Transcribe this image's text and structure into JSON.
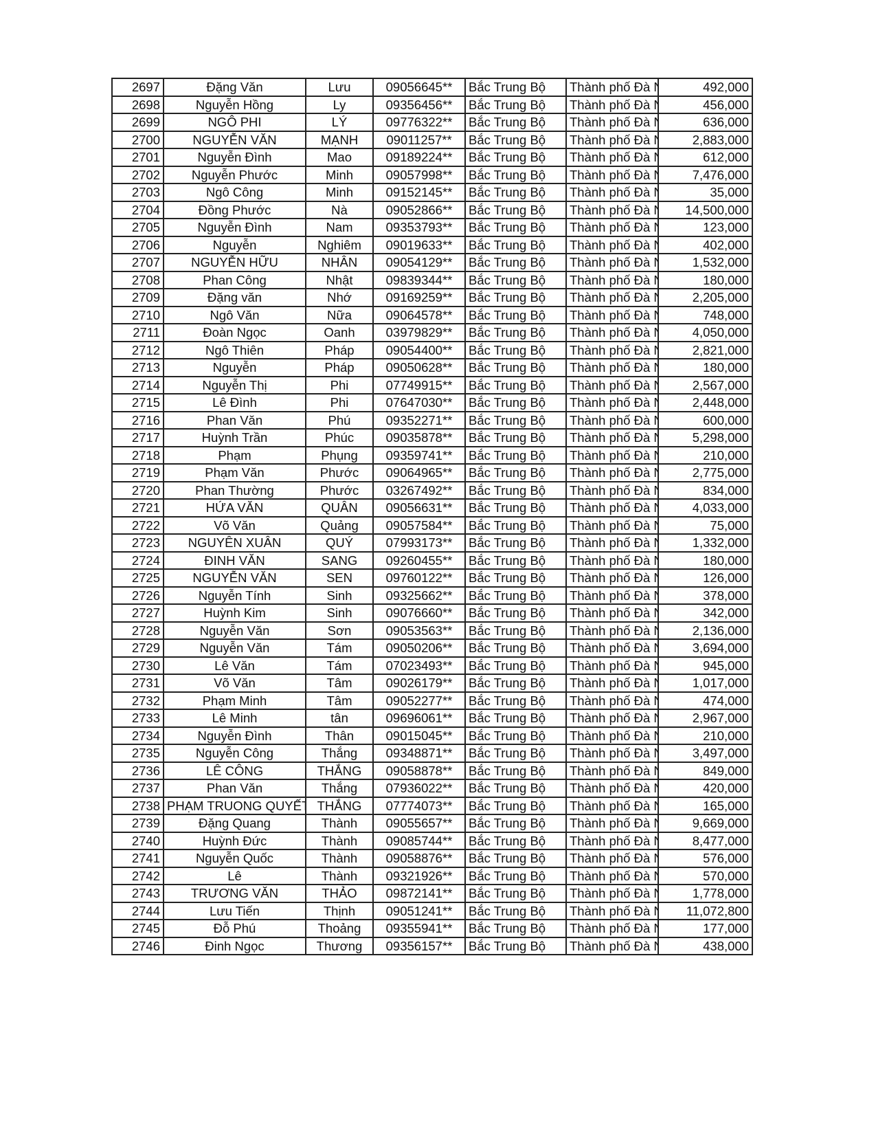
{
  "table": {
    "rows": [
      [
        "2697",
        "Đặng Văn",
        "Lưu",
        "09056645**",
        "Bắc Trung Bộ",
        "Thành phố Đà N",
        "492,000"
      ],
      [
        "2698",
        "Nguyễn Hồng",
        "Ly",
        "09356456**",
        "Bắc Trung Bộ",
        "Thành phố Đà N",
        "456,000"
      ],
      [
        "2699",
        "NGÔ PHI",
        "LÝ",
        "09776322**",
        "Bắc Trung Bộ",
        "Thành phố Đà N",
        "636,000"
      ],
      [
        "2700",
        "NGUYỄN VĂN",
        "MẠNH",
        "09011257**",
        "Bắc Trung Bộ",
        "Thành phố Đà N",
        "2,883,000"
      ],
      [
        "2701",
        "Nguyễn Đình",
        "Mao",
        "09189224**",
        "Bắc Trung Bộ",
        "Thành phố Đà N",
        "612,000"
      ],
      [
        "2702",
        "Nguyễn Phước",
        "Minh",
        "09057998**",
        "Bắc Trung Bộ",
        "Thành phố Đà N",
        "7,476,000"
      ],
      [
        "2703",
        "Ngô Công",
        "Minh",
        "09152145**",
        "Bắc Trung Bộ",
        "Thành phố Đà N",
        "35,000"
      ],
      [
        "2704",
        "Đồng Phước",
        "Nà",
        "09052866**",
        "Bắc Trung Bộ",
        "Thành phố Đà N",
        "14,500,000"
      ],
      [
        "2705",
        "Nguyễn Đình",
        "Nam",
        "09353793**",
        "Bắc Trung Bộ",
        "Thành phố Đà N",
        "123,000"
      ],
      [
        "2706",
        "Nguyễn",
        "Nghiêm",
        "09019633**",
        "Bắc Trung Bộ",
        "Thành phố Đà N",
        "402,000"
      ],
      [
        "2707",
        "NGUYỄN HỮU",
        "NHÂN",
        "09054129**",
        "Bắc Trung Bộ",
        "Thành phố Đà N",
        "1,532,000"
      ],
      [
        "2708",
        "Phan Công",
        "Nhật",
        "09839344**",
        "Bắc Trung Bộ",
        "Thành phố Đà N",
        "180,000"
      ],
      [
        "2709",
        "Đặng văn",
        "Nhớ",
        "09169259**",
        "Bắc Trung Bộ",
        "Thành phố Đà N",
        "2,205,000"
      ],
      [
        "2710",
        "Ngô Văn",
        "Nữa",
        "09064578**",
        "Bắc Trung Bộ",
        "Thành phố Đà N",
        "748,000"
      ],
      [
        "2711",
        "Đoàn Ngọc",
        "Oanh",
        "03979829**",
        "Bắc Trung Bộ",
        "Thành phố Đà N",
        "4,050,000"
      ],
      [
        "2712",
        "Ngô Thiên",
        "Pháp",
        "09054400**",
        "Bắc Trung Bộ",
        "Thành phố Đà N",
        "2,821,000"
      ],
      [
        "2713",
        "Nguyễn",
        "Pháp",
        "09050628**",
        "Bắc Trung Bộ",
        "Thành phố Đà N",
        "180,000"
      ],
      [
        "2714",
        "Nguyễn Thị",
        "Phi",
        "07749915**",
        "Bắc Trung Bộ",
        "Thành phố Đà N",
        "2,567,000"
      ],
      [
        "2715",
        "Lê Đình",
        "Phi",
        "07647030**",
        "Bắc Trung Bộ",
        "Thành phố Đà N",
        "2,448,000"
      ],
      [
        "2716",
        "Phan Văn",
        "Phú",
        "09352271**",
        "Bắc Trung Bộ",
        "Thành phố Đà N",
        "600,000"
      ],
      [
        "2717",
        "Huỳnh Trần",
        "Phúc",
        "09035878**",
        "Bắc Trung Bộ",
        "Thành phố Đà N",
        "5,298,000"
      ],
      [
        "2718",
        "Phạm",
        "Phụng",
        "09359741**",
        "Bắc Trung Bộ",
        "Thành phố Đà N",
        "210,000"
      ],
      [
        "2719",
        "Phạm Văn",
        "Phước",
        "09064965**",
        "Bắc Trung Bộ",
        "Thành phố Đà N",
        "2,775,000"
      ],
      [
        "2720",
        "Phan Thường",
        "Phước",
        "03267492**",
        "Bắc Trung Bộ",
        "Thành phố Đà N",
        "834,000"
      ],
      [
        "2721",
        "HỨA VĂN",
        "QUÂN",
        "09056631**",
        "Bắc Trung Bộ",
        "Thành phố Đà N",
        "4,033,000"
      ],
      [
        "2722",
        "Võ Văn",
        "Quảng",
        "09057584**",
        "Bắc Trung Bộ",
        "Thành phố Đà N",
        "75,000"
      ],
      [
        "2723",
        "NGUYÊN XUÂN",
        "QUÝ",
        "07993173**",
        "Bắc Trung Bộ",
        "Thành phố Đà N",
        "1,332,000"
      ],
      [
        "2724",
        "ĐINH VĂN",
        "SANG",
        "09260455**",
        "Bắc Trung Bộ",
        "Thành phố Đà N",
        "180,000"
      ],
      [
        "2725",
        "NGUYỄN VĂN",
        "SEN",
        "09760122**",
        "Bắc Trung Bộ",
        "Thành phố Đà N",
        "126,000"
      ],
      [
        "2726",
        "Nguyễn Tính",
        "Sinh",
        "09325662**",
        "Bắc Trung Bộ",
        "Thành phố Đà N",
        "378,000"
      ],
      [
        "2727",
        "Huỳnh Kim",
        "Sinh",
        "09076660**",
        "Bắc Trung Bộ",
        "Thành phố Đà N",
        "342,000"
      ],
      [
        "2728",
        "Nguyễn Văn",
        "Sơn",
        "09053563**",
        "Bắc Trung Bộ",
        "Thành phố Đà N",
        "2,136,000"
      ],
      [
        "2729",
        "Nguyễn Văn",
        "Tám",
        "09050206**",
        "Bắc Trung Bộ",
        "Thành phố Đà N",
        "3,694,000"
      ],
      [
        "2730",
        "Lê Văn",
        "Tám",
        "07023493**",
        "Bắc Trung Bộ",
        "Thành phố Đà N",
        "945,000"
      ],
      [
        "2731",
        "Võ Văn",
        "Tâm",
        "09026179**",
        "Bắc Trung Bộ",
        "Thành phố Đà N",
        "1,017,000"
      ],
      [
        "2732",
        "Phạm Minh",
        "Tâm",
        "09052277**",
        "Bắc Trung Bộ",
        "Thành phố Đà N",
        "474,000"
      ],
      [
        "2733",
        "Lê Minh",
        "tân",
        "09696061**",
        "Bắc Trung Bộ",
        "Thành phố Đà N",
        "2,967,000"
      ],
      [
        "2734",
        "Nguyễn Đình",
        "Thân",
        "09015045**",
        "Bắc Trung Bộ",
        "Thành phố Đà N",
        "210,000"
      ],
      [
        "2735",
        "Nguyễn Công",
        "Thắng",
        "09348871**",
        "Bắc Trung Bộ",
        "Thành phố Đà N",
        "3,497,000"
      ],
      [
        "2736",
        "LÊ CÔNG",
        "THẮNG",
        "09058878**",
        "Bắc Trung Bộ",
        "Thành phố Đà N",
        "849,000"
      ],
      [
        "2737",
        "Phan Văn",
        "Thắng",
        "07936022**",
        "Bắc Trung Bộ",
        "Thành phố Đà N",
        "420,000"
      ],
      [
        "2738",
        "PHẠM TRUONG QUYẾT",
        "THẮNG",
        "07774073**",
        "Bắc Trung Bộ",
        "Thành phố Đà N",
        "165,000"
      ],
      [
        "2739",
        "Đặng Quang",
        "Thành",
        "09055657**",
        "Bắc Trung Bộ",
        "Thành phố Đà N",
        "9,669,000"
      ],
      [
        "2740",
        "Huỳnh Đức",
        "Thành",
        "09085744**",
        "Bắc Trung Bộ",
        "Thành phố Đà N",
        "8,477,000"
      ],
      [
        "2741",
        "Nguyễn Quốc",
        "Thành",
        "09058876**",
        "Bắc Trung Bộ",
        "Thành phố Đà N",
        "576,000"
      ],
      [
        "2742",
        "Lê",
        "Thành",
        "09321926**",
        "Bắc Trung Bộ",
        "Thành phố Đà N",
        "570,000"
      ],
      [
        "2743",
        "TRƯƠNG VĂN",
        "THẢO",
        "09872141**",
        "Bắc Trung Bộ",
        "Thành phố Đà N",
        "1,778,000"
      ],
      [
        "2744",
        "Lưu Tiến",
        "Thịnh",
        "09051241**",
        "Bắc Trung Bộ",
        "Thành phố Đà N",
        "11,072,800"
      ],
      [
        "2745",
        "Đỗ Phú",
        "Thoảng",
        "09355941**",
        "Bắc Trung Bộ",
        "Thành phố Đà N",
        "177,000"
      ],
      [
        "2746",
        "Đinh Ngọc",
        "Thương",
        "09356157**",
        "Bắc Trung Bộ",
        "Thành phố Đà N",
        "438,000"
      ]
    ]
  }
}
